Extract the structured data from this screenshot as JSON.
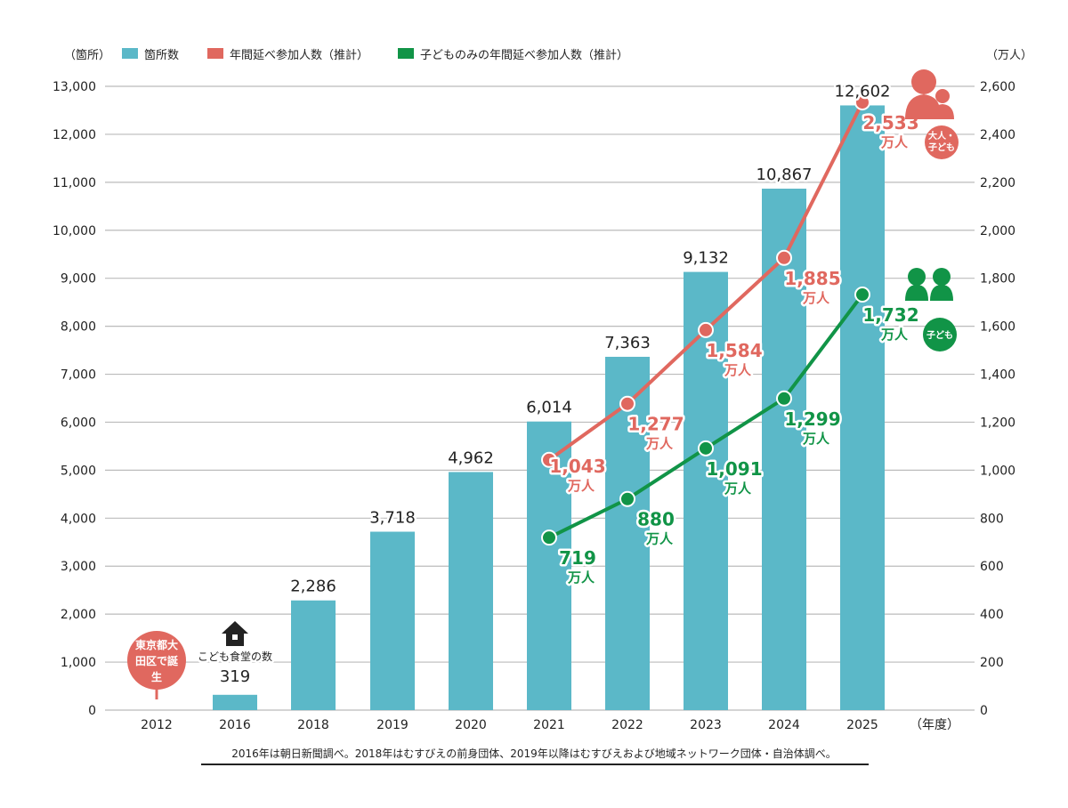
{
  "chart_data": {
    "type": "bar+line",
    "left_axis_unit": "（箇所）",
    "right_axis_unit": "（万人）",
    "x_axis_unit": "（年度）",
    "categories": [
      "2012",
      "2016",
      "2018",
      "2019",
      "2020",
      "2021",
      "2022",
      "2023",
      "2024",
      "2025"
    ],
    "left_ylim": [
      0,
      13000
    ],
    "left_ticks": [
      "0",
      "1,000",
      "2,000",
      "3,000",
      "4,000",
      "5,000",
      "6,000",
      "7,000",
      "8,000",
      "9,000",
      "10,000",
      "11,000",
      "12,000",
      "13,000"
    ],
    "right_ylim": [
      0,
      2600
    ],
    "right_ticks": [
      "0",
      "200",
      "400",
      "600",
      "800",
      "1,000",
      "1,200",
      "1,400",
      "1,600",
      "1,800",
      "2,000",
      "2,200",
      "2,400",
      "2,600"
    ],
    "grid": true,
    "legend_position": "top",
    "series": [
      {
        "name": "箇所数",
        "kind": "bar",
        "axis": "left",
        "color": "#5bb8c8",
        "values": [
          null,
          319,
          2286,
          3718,
          4962,
          6014,
          7363,
          9132,
          10867,
          12602
        ],
        "labels": [
          "",
          "319",
          "2,286",
          "3,718",
          "4,962",
          "6,014",
          "7,363",
          "9,132",
          "10,867",
          "12,602"
        ]
      },
      {
        "name": "年間延べ参加人数（推計）",
        "kind": "line",
        "axis": "right",
        "color": "#e0685f",
        "values": [
          null,
          null,
          null,
          null,
          null,
          1043,
          1277,
          1584,
          1885,
          2533
        ],
        "labels": [
          "",
          "",
          "",
          "",
          "",
          "1,043",
          "1,277",
          "1,584",
          "1,885",
          "2,533"
        ],
        "unit": "万人",
        "badge": "大人・子ども"
      },
      {
        "name": "子どものみの年間延べ参加人数（推計）",
        "kind": "line",
        "axis": "right",
        "color": "#119447",
        "values": [
          null,
          null,
          null,
          null,
          null,
          719,
          880,
          1091,
          1299,
          1732
        ],
        "labels": [
          "",
          "",
          "",
          "",
          "",
          "719",
          "880",
          "1,091",
          "1,299",
          "1,732"
        ],
        "unit": "万人",
        "badge": "子ども"
      }
    ],
    "annotations": {
      "origin_pin": "東京都大田区で誕生",
      "house_caption": "こども食堂の数"
    },
    "footnote": "2016年は朝日新聞調べ。2018年はむすびえの前身団体、2019年以降はむすびえおよび地域ネットワーク団体・自治体調べ。"
  }
}
